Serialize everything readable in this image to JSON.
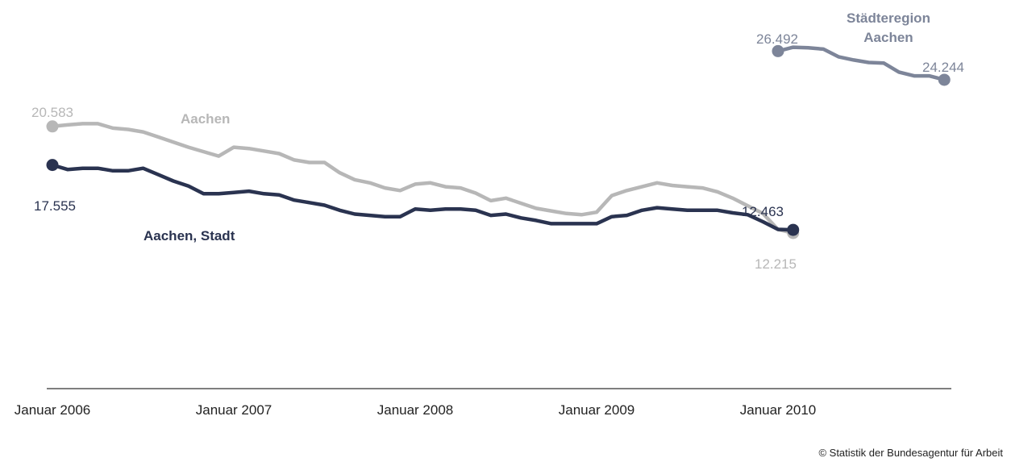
{
  "chart_data": {
    "type": "line",
    "title": "",
    "xlabel": "",
    "ylabel": "",
    "x_ticks": [
      "Januar 2006",
      "Januar 2007",
      "Januar 2008",
      "Januar 2009",
      "Januar 2010"
    ],
    "x_range": [
      "2006-01",
      "2011-02"
    ],
    "y_range": [
      0,
      30000
    ],
    "grid": false,
    "legend": "inline labels",
    "series": [
      {
        "name": "Aachen",
        "color": "#b7b7b7",
        "label_value_start": "20.583",
        "label_value_end": "12.215",
        "points": [
          [
            "2006-01",
            20583
          ],
          [
            "2006-02",
            20700
          ],
          [
            "2006-03",
            20800
          ],
          [
            "2006-04",
            20800
          ],
          [
            "2006-05",
            20450
          ],
          [
            "2006-06",
            20350
          ],
          [
            "2006-07",
            20150
          ],
          [
            "2006-08",
            19750
          ],
          [
            "2006-09",
            19350
          ],
          [
            "2006-10",
            18950
          ],
          [
            "2006-11",
            18600
          ],
          [
            "2006-12",
            18250
          ],
          [
            "2007-01",
            18950
          ],
          [
            "2007-02",
            18850
          ],
          [
            "2007-03",
            18650
          ],
          [
            "2007-04",
            18450
          ],
          [
            "2007-05",
            17950
          ],
          [
            "2007-06",
            17750
          ],
          [
            "2007-07",
            17750
          ],
          [
            "2007-08",
            16950
          ],
          [
            "2007-09",
            16400
          ],
          [
            "2007-10",
            16150
          ],
          [
            "2007-11",
            15750
          ],
          [
            "2007-12",
            15550
          ],
          [
            "2008-01",
            16050
          ],
          [
            "2008-02",
            16150
          ],
          [
            "2008-03",
            15850
          ],
          [
            "2008-04",
            15750
          ],
          [
            "2008-05",
            15350
          ],
          [
            "2008-06",
            14750
          ],
          [
            "2008-07",
            14950
          ],
          [
            "2008-08",
            14550
          ],
          [
            "2008-09",
            14150
          ],
          [
            "2008-10",
            13950
          ],
          [
            "2008-11",
            13750
          ],
          [
            "2008-12",
            13650
          ],
          [
            "2009-01",
            13850
          ],
          [
            "2009-02",
            15150
          ],
          [
            "2009-03",
            15550
          ],
          [
            "2009-04",
            15850
          ],
          [
            "2009-05",
            16150
          ],
          [
            "2009-06",
            15950
          ],
          [
            "2009-07",
            15850
          ],
          [
            "2009-08",
            15750
          ],
          [
            "2009-09",
            15450
          ],
          [
            "2009-10",
            14950
          ],
          [
            "2009-11",
            14350
          ],
          [
            "2009-12",
            13750
          ],
          [
            "2010-01",
            12500
          ],
          [
            "2010-02",
            12215
          ]
        ]
      },
      {
        "name": "Aachen, Stadt",
        "color": "#2a3350",
        "label_value_start": "17.555",
        "label_value_end": "12.463",
        "points": [
          [
            "2006-01",
            17555
          ],
          [
            "2006-02",
            17200
          ],
          [
            "2006-03",
            17300
          ],
          [
            "2006-04",
            17300
          ],
          [
            "2006-05",
            17100
          ],
          [
            "2006-06",
            17100
          ],
          [
            "2006-07",
            17300
          ],
          [
            "2006-08",
            16800
          ],
          [
            "2006-09",
            16300
          ],
          [
            "2006-10",
            15900
          ],
          [
            "2006-11",
            15300
          ],
          [
            "2006-12",
            15300
          ],
          [
            "2007-01",
            15400
          ],
          [
            "2007-02",
            15500
          ],
          [
            "2007-03",
            15300
          ],
          [
            "2007-04",
            15200
          ],
          [
            "2007-05",
            14800
          ],
          [
            "2007-06",
            14600
          ],
          [
            "2007-07",
            14400
          ],
          [
            "2007-08",
            14000
          ],
          [
            "2007-09",
            13700
          ],
          [
            "2007-10",
            13600
          ],
          [
            "2007-11",
            13500
          ],
          [
            "2007-12",
            13500
          ],
          [
            "2008-01",
            14100
          ],
          [
            "2008-02",
            14000
          ],
          [
            "2008-03",
            14100
          ],
          [
            "2008-04",
            14100
          ],
          [
            "2008-05",
            14000
          ],
          [
            "2008-06",
            13600
          ],
          [
            "2008-07",
            13700
          ],
          [
            "2008-08",
            13400
          ],
          [
            "2008-09",
            13200
          ],
          [
            "2008-10",
            12950
          ],
          [
            "2008-11",
            12950
          ],
          [
            "2008-12",
            12950
          ],
          [
            "2009-01",
            12950
          ],
          [
            "2009-02",
            13500
          ],
          [
            "2009-03",
            13600
          ],
          [
            "2009-04",
            14000
          ],
          [
            "2009-05",
            14200
          ],
          [
            "2009-06",
            14100
          ],
          [
            "2009-07",
            14000
          ],
          [
            "2009-08",
            14000
          ],
          [
            "2009-09",
            14000
          ],
          [
            "2009-10",
            13800
          ],
          [
            "2009-11",
            13650
          ],
          [
            "2009-12",
            13100
          ],
          [
            "2010-01",
            12500
          ],
          [
            "2010-02",
            12463
          ]
        ]
      },
      {
        "name": "Städteregion Aachen",
        "color": "#7d8599",
        "label_value_start": "26.492",
        "label_value_end": "24.244",
        "points": [
          [
            "2010-01",
            26492
          ],
          [
            "2010-02",
            26800
          ],
          [
            "2010-03",
            26750
          ],
          [
            "2010-04",
            26650
          ],
          [
            "2010-05",
            26050
          ],
          [
            "2010-06",
            25800
          ],
          [
            "2010-07",
            25600
          ],
          [
            "2010-08",
            25550
          ],
          [
            "2010-09",
            24850
          ],
          [
            "2010-10",
            24550
          ],
          [
            "2010-11",
            24550
          ],
          [
            "2010-12",
            24244
          ]
        ]
      }
    ]
  },
  "labels": {
    "series_aachen": "Aachen",
    "series_stadt": "Aachen, Stadt",
    "series_region_line1": "Städteregion",
    "series_region_line2": "Aachen"
  },
  "source": "© Statistik der Bundesagentur für Arbeit"
}
